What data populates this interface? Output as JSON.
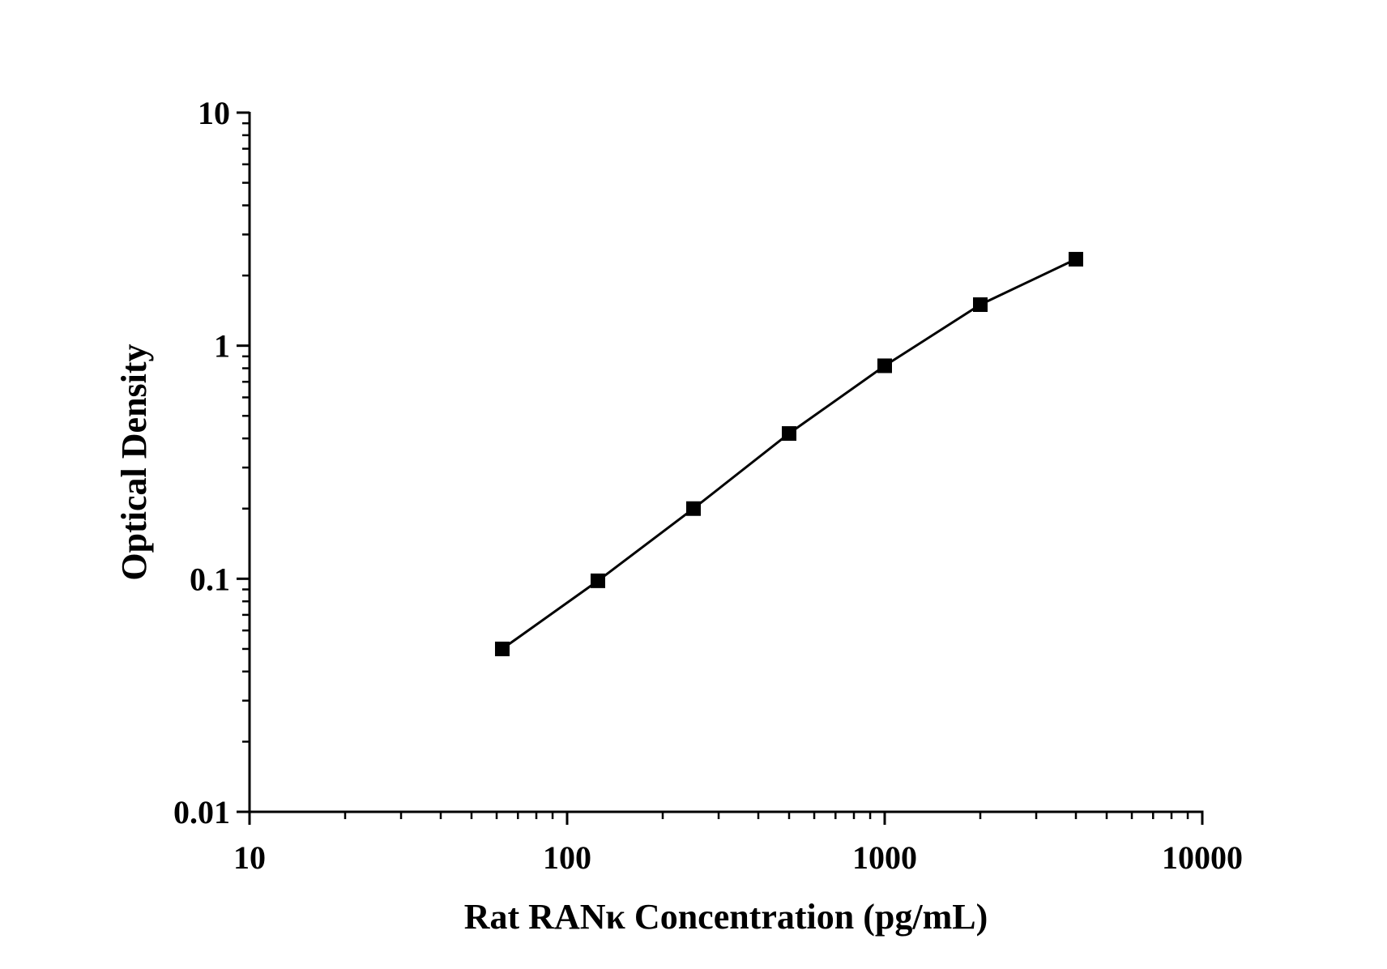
{
  "chart_data": {
    "type": "line",
    "title": "",
    "xlabel": "Rat RANκ Concentration (pg/mL)",
    "ylabel": "Optical Density",
    "x_scale": "log",
    "y_scale": "log",
    "xlim": [
      10,
      10000
    ],
    "ylim": [
      0.01,
      10
    ],
    "x_ticks": [
      "10",
      "100",
      "1000",
      "10000"
    ],
    "y_ticks": [
      "0.01",
      "0.1",
      "1",
      "10"
    ],
    "grid": false,
    "legend": "none",
    "line_color": "#000000",
    "marker": "square",
    "series": [
      {
        "x": [
          62.5,
          125,
          250,
          500,
          1000,
          2000,
          4000
        ],
        "values": [
          0.05,
          0.098,
          0.2,
          0.42,
          0.82,
          1.5,
          2.35
        ]
      }
    ]
  }
}
